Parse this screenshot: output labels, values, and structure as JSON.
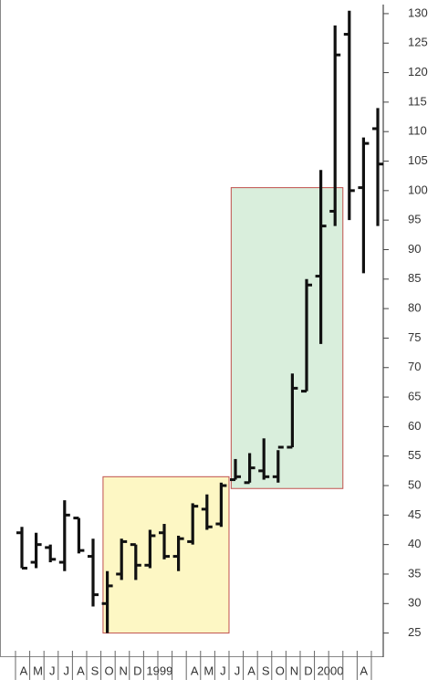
{
  "chart_data": {
    "type": "ohlc",
    "categories": [
      "A",
      "M",
      "J",
      "J",
      "A",
      "S",
      "O",
      "N",
      "D",
      "1999",
      null,
      null,
      "A",
      "M",
      "J",
      "J",
      "A",
      "S",
      "O",
      "N",
      "D",
      "2000",
      null,
      null,
      "A",
      null
    ],
    "series": {
      "color": "#111111",
      "open": [
        42,
        37,
        39.5,
        37,
        44.5,
        38,
        30,
        35,
        40,
        36.5,
        42,
        38,
        40.5,
        46,
        43.5,
        51,
        50.5,
        52.5,
        51.5,
        56.5,
        66,
        85.5,
        96.5,
        126.5,
        100.5,
        110.5
      ],
      "high": [
        43,
        42,
        40,
        47.5,
        44.5,
        41,
        35.5,
        41,
        40,
        42.5,
        43.5,
        41.5,
        47,
        48.5,
        50.5,
        54.5,
        55.5,
        58,
        56,
        69,
        85,
        103.5,
        128,
        130.5,
        109,
        114
      ],
      "low": [
        36,
        36,
        37,
        35.5,
        38.5,
        29.5,
        25,
        34,
        34,
        36,
        37.5,
        35.5,
        40,
        42.5,
        43,
        51,
        50.5,
        51,
        50.5,
        56.5,
        66,
        74,
        94,
        95,
        86,
        94
      ],
      "close": [
        36,
        40,
        37.5,
        45,
        39,
        31.5,
        33,
        40.5,
        36.5,
        41.5,
        38,
        41,
        46.5,
        43,
        50,
        51.5,
        53,
        51.5,
        56.5,
        66.5,
        84,
        94,
        123,
        100,
        108,
        104.5
      ]
    },
    "boxes": [
      {
        "start": 6,
        "end": 14,
        "low": 25,
        "high": 51.5,
        "fill": "#fdf7c4",
        "stroke": "#c0504d"
      },
      {
        "start": 15,
        "end": 22,
        "low": 49.5,
        "high": 100.5,
        "fill": "#d9eedc",
        "stroke": "#c0504d"
      }
    ],
    "ylim": [
      22,
      132
    ],
    "yticks": [
      25,
      30,
      35,
      40,
      45,
      50,
      55,
      60,
      65,
      70,
      75,
      80,
      85,
      90,
      95,
      100,
      105,
      110,
      115,
      120,
      125,
      130
    ]
  }
}
